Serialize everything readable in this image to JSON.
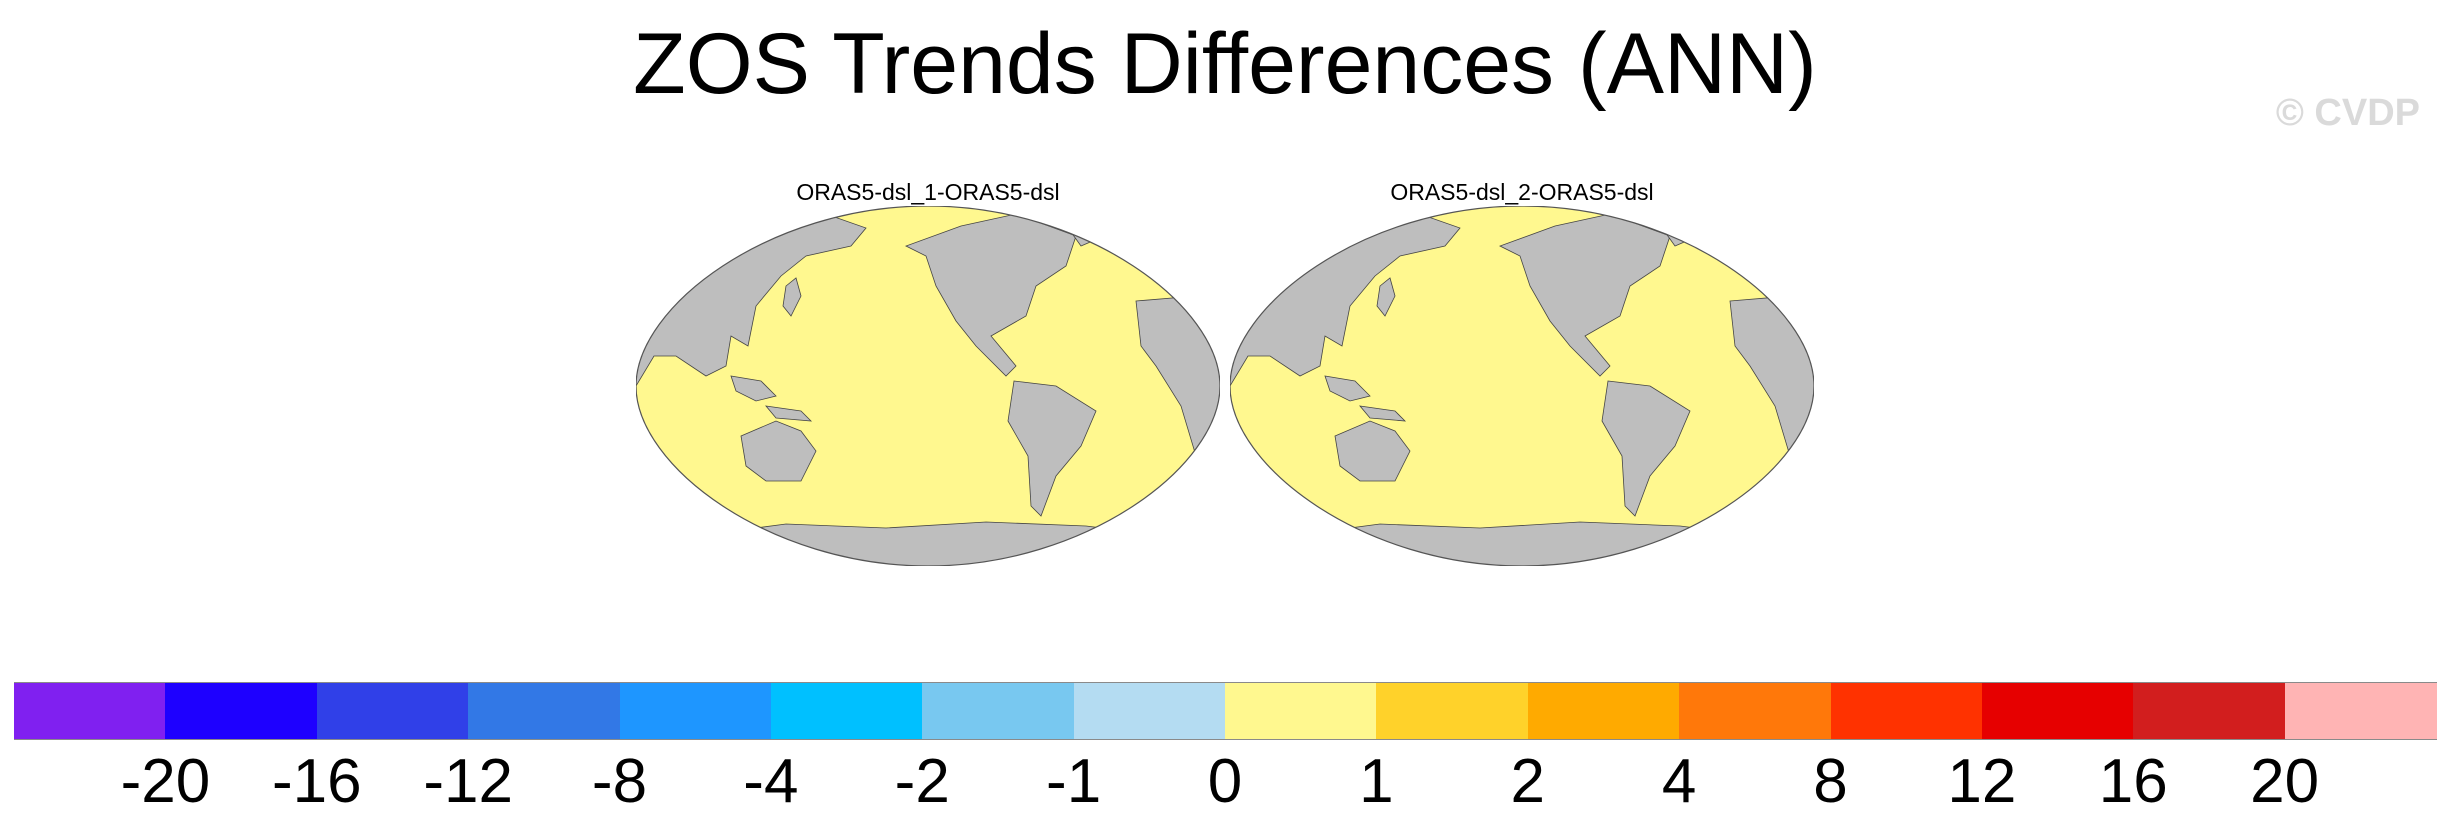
{
  "title": "ZOS Trends Differences (ANN)",
  "watermark": "© CVDP",
  "panels": [
    {
      "title": "ORAS5-dsl_1-ORAS5-dsl"
    },
    {
      "title": "ORAS5-dsl_2-ORAS5-dsl"
    }
  ],
  "colors": {
    "ocean": "#fff88f",
    "land": "#bebebe",
    "land_edge": "#444444"
  },
  "colorbar": {
    "labels": [
      "-20",
      "-16",
      "-12",
      "-8",
      "-4",
      "-2",
      "-1",
      "0",
      "1",
      "2",
      "4",
      "8",
      "12",
      "16",
      "20"
    ],
    "colors": [
      "#8020f0",
      "#1e00ff",
      "#3040e8",
      "#3278e6",
      "#1e96ff",
      "#00c0ff",
      "#78c8f0",
      "#b4dcf2",
      "#fff88f",
      "#ffd22a",
      "#ffaa00",
      "#ff780a",
      "#ff3200",
      "#e60000",
      "#d21e1e",
      "#ffb4b4"
    ]
  }
}
